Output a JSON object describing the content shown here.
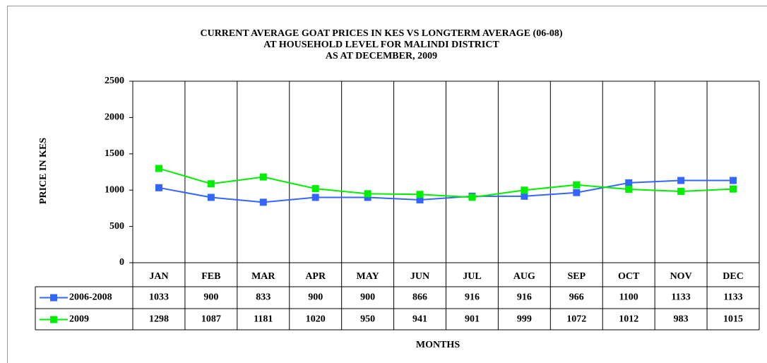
{
  "chart_data": {
    "type": "line",
    "title": [
      "CURRENT AVERAGE GOAT PRICES IN KES VS LONGTERM AVERAGE (06-08)",
      "AT HOUSEHOLD LEVEL FOR MALINDI DISTRICT",
      "AS AT DECEMBER,  2009"
    ],
    "x_label": "MONTHS",
    "y_label": "PRICE IN KES",
    "categories": [
      "JAN",
      "FEB",
      "MAR",
      "APR",
      "MAY",
      "JUN",
      "JUL",
      "AUG",
      "SEP",
      "OCT",
      "NOV",
      "DEC"
    ],
    "series": [
      {
        "name": "2006-2008",
        "color": "#3366ff",
        "values": [
          1033,
          900,
          833,
          900,
          900,
          866,
          916,
          916,
          966,
          1100,
          1133,
          1133
        ]
      },
      {
        "name": "2009",
        "color": "#00ee00",
        "values": [
          1298,
          1087,
          1181,
          1020,
          950,
          941,
          901,
          999,
          1072,
          1012,
          983,
          1015
        ]
      }
    ],
    "ylim": [
      0,
      2500
    ],
    "yticks": [
      0,
      500,
      1000,
      1500,
      2000,
      2500
    ]
  }
}
